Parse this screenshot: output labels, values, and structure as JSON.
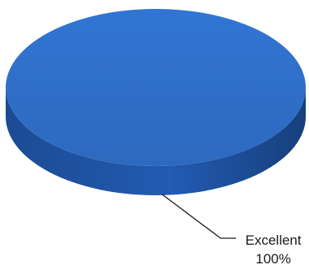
{
  "chart_data": {
    "type": "pie",
    "style": "3d",
    "slices": [
      {
        "label": "Excellent",
        "value": 100,
        "value_label": "100%",
        "color": "#2f6fc9"
      }
    ],
    "legend": "none",
    "colors": {
      "top": "#2f6fc9",
      "side": "#1d4f9b",
      "leader_line": "#1a1a1a"
    }
  }
}
